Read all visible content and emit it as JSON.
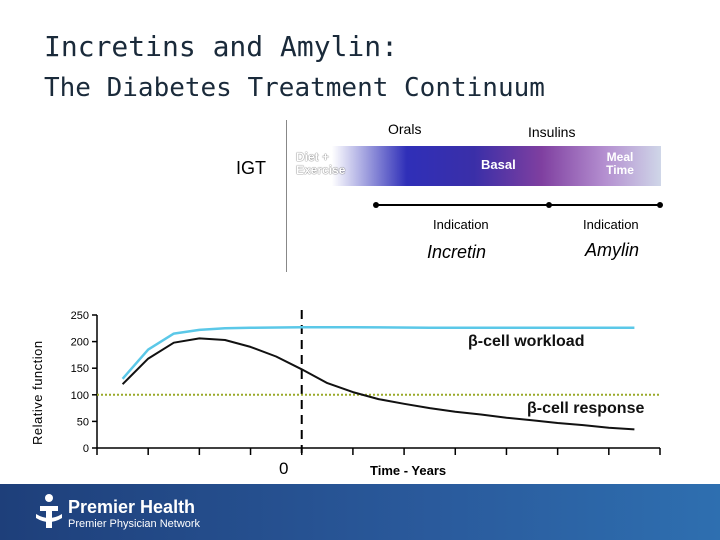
{
  "title": {
    "line1": "Incretins and Amylin:",
    "line2": "The Diabetes Treatment Continuum"
  },
  "continuum": {
    "orals": "Orals",
    "insulins": "Insulins",
    "igt": "IGT",
    "diet_exercise": "Diet + Exercise",
    "basal": "Basal",
    "meal_time": "Meal Time",
    "indication_left": "Indication",
    "indication_right": "Indication",
    "incretin": "Incretin",
    "amylin": "Amylin"
  },
  "chart_data": {
    "type": "line",
    "ylabel": "Relative function",
    "xlabel": "Time - Years",
    "x_zero_label": "0",
    "ylim": [
      0,
      250
    ],
    "yticks": [
      "250",
      "200",
      "150",
      "100",
      "50",
      "0"
    ],
    "series": [
      {
        "name": "β-cell workload",
        "color": "#5bc8e8",
        "points": [
          [
            -7,
            130
          ],
          [
            -6,
            185
          ],
          [
            -5,
            215
          ],
          [
            -4,
            222
          ],
          [
            -3,
            225
          ],
          [
            -2,
            226
          ],
          [
            0,
            227
          ],
          [
            2,
            227
          ],
          [
            5,
            226
          ],
          [
            10,
            226
          ],
          [
            13,
            226
          ]
        ]
      },
      {
        "name": "β-cell response",
        "color": "#111111",
        "points": [
          [
            -7,
            120
          ],
          [
            -6,
            168
          ],
          [
            -5,
            198
          ],
          [
            -4,
            206
          ],
          [
            -3,
            203
          ],
          [
            -2,
            190
          ],
          [
            -1,
            172
          ],
          [
            0,
            148
          ],
          [
            1,
            122
          ],
          [
            2,
            105
          ],
          [
            3,
            92
          ],
          [
            4,
            83
          ],
          [
            5,
            75
          ],
          [
            6,
            68
          ],
          [
            7,
            63
          ],
          [
            8,
            57
          ],
          [
            9,
            52
          ],
          [
            10,
            47
          ],
          [
            11,
            43
          ],
          [
            12,
            38
          ],
          [
            13,
            35
          ]
        ]
      }
    ],
    "reference_line": {
      "value": 100,
      "color": "#9aaa2a"
    },
    "labels": {
      "workload": "β-cell workload",
      "response": "β-cell response"
    }
  },
  "footer": {
    "name": "Premier Health",
    "sub": "Premier Physician Network"
  }
}
